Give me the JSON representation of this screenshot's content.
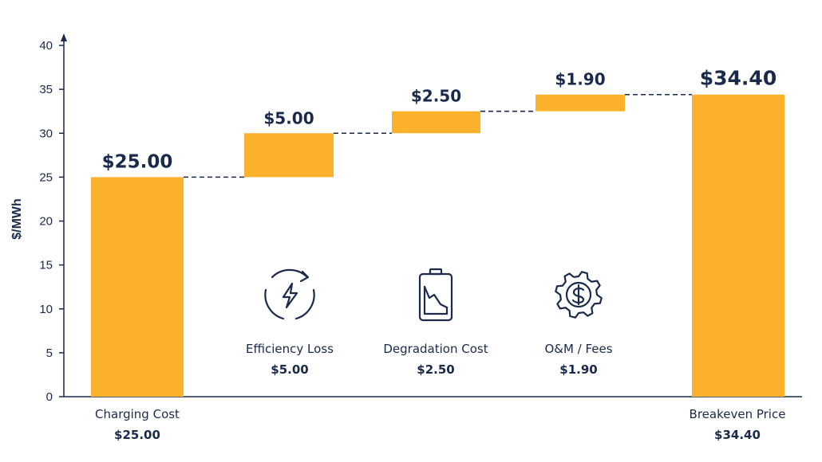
{
  "chart_data": {
    "type": "waterfall",
    "title": "",
    "xlabel": "",
    "ylabel": "$/MWh",
    "ylim": [
      0,
      40
    ],
    "yticks": [
      0,
      5,
      10,
      15,
      20,
      25,
      30,
      35,
      40
    ],
    "grid": false,
    "bar_color": "#FBB12B",
    "text_color": "#1A2A4A",
    "connector_style": "dashed",
    "steps": [
      {
        "name": "Charging Cost",
        "value": 25.0,
        "kind": "total",
        "value_label": "$25.00",
        "axis_label": "Charging Cost",
        "axis_value": "$25.00",
        "icon": ""
      },
      {
        "name": "Efficiency Loss",
        "value": 5.0,
        "kind": "delta",
        "value_label": "$5.00",
        "axis_label": "Efficiency Loss",
        "axis_value": "$5.00",
        "icon": "cycle-lightning-icon"
      },
      {
        "name": "Degradation Cost",
        "value": 2.5,
        "kind": "delta",
        "value_label": "$2.50",
        "axis_label": "Degradation Cost",
        "axis_value": "$2.50",
        "icon": "battery-decline-icon"
      },
      {
        "name": "O&M / Fees",
        "value": 1.9,
        "kind": "delta",
        "value_label": "$1.90",
        "axis_label": "O&M / Fees",
        "axis_value": "$1.90",
        "icon": "gear-dollar-icon"
      },
      {
        "name": "Breakeven Price",
        "value": 34.4,
        "kind": "total",
        "value_label": "$34.40",
        "axis_label": "Breakeven Price",
        "axis_value": "$34.40",
        "icon": ""
      }
    ]
  }
}
